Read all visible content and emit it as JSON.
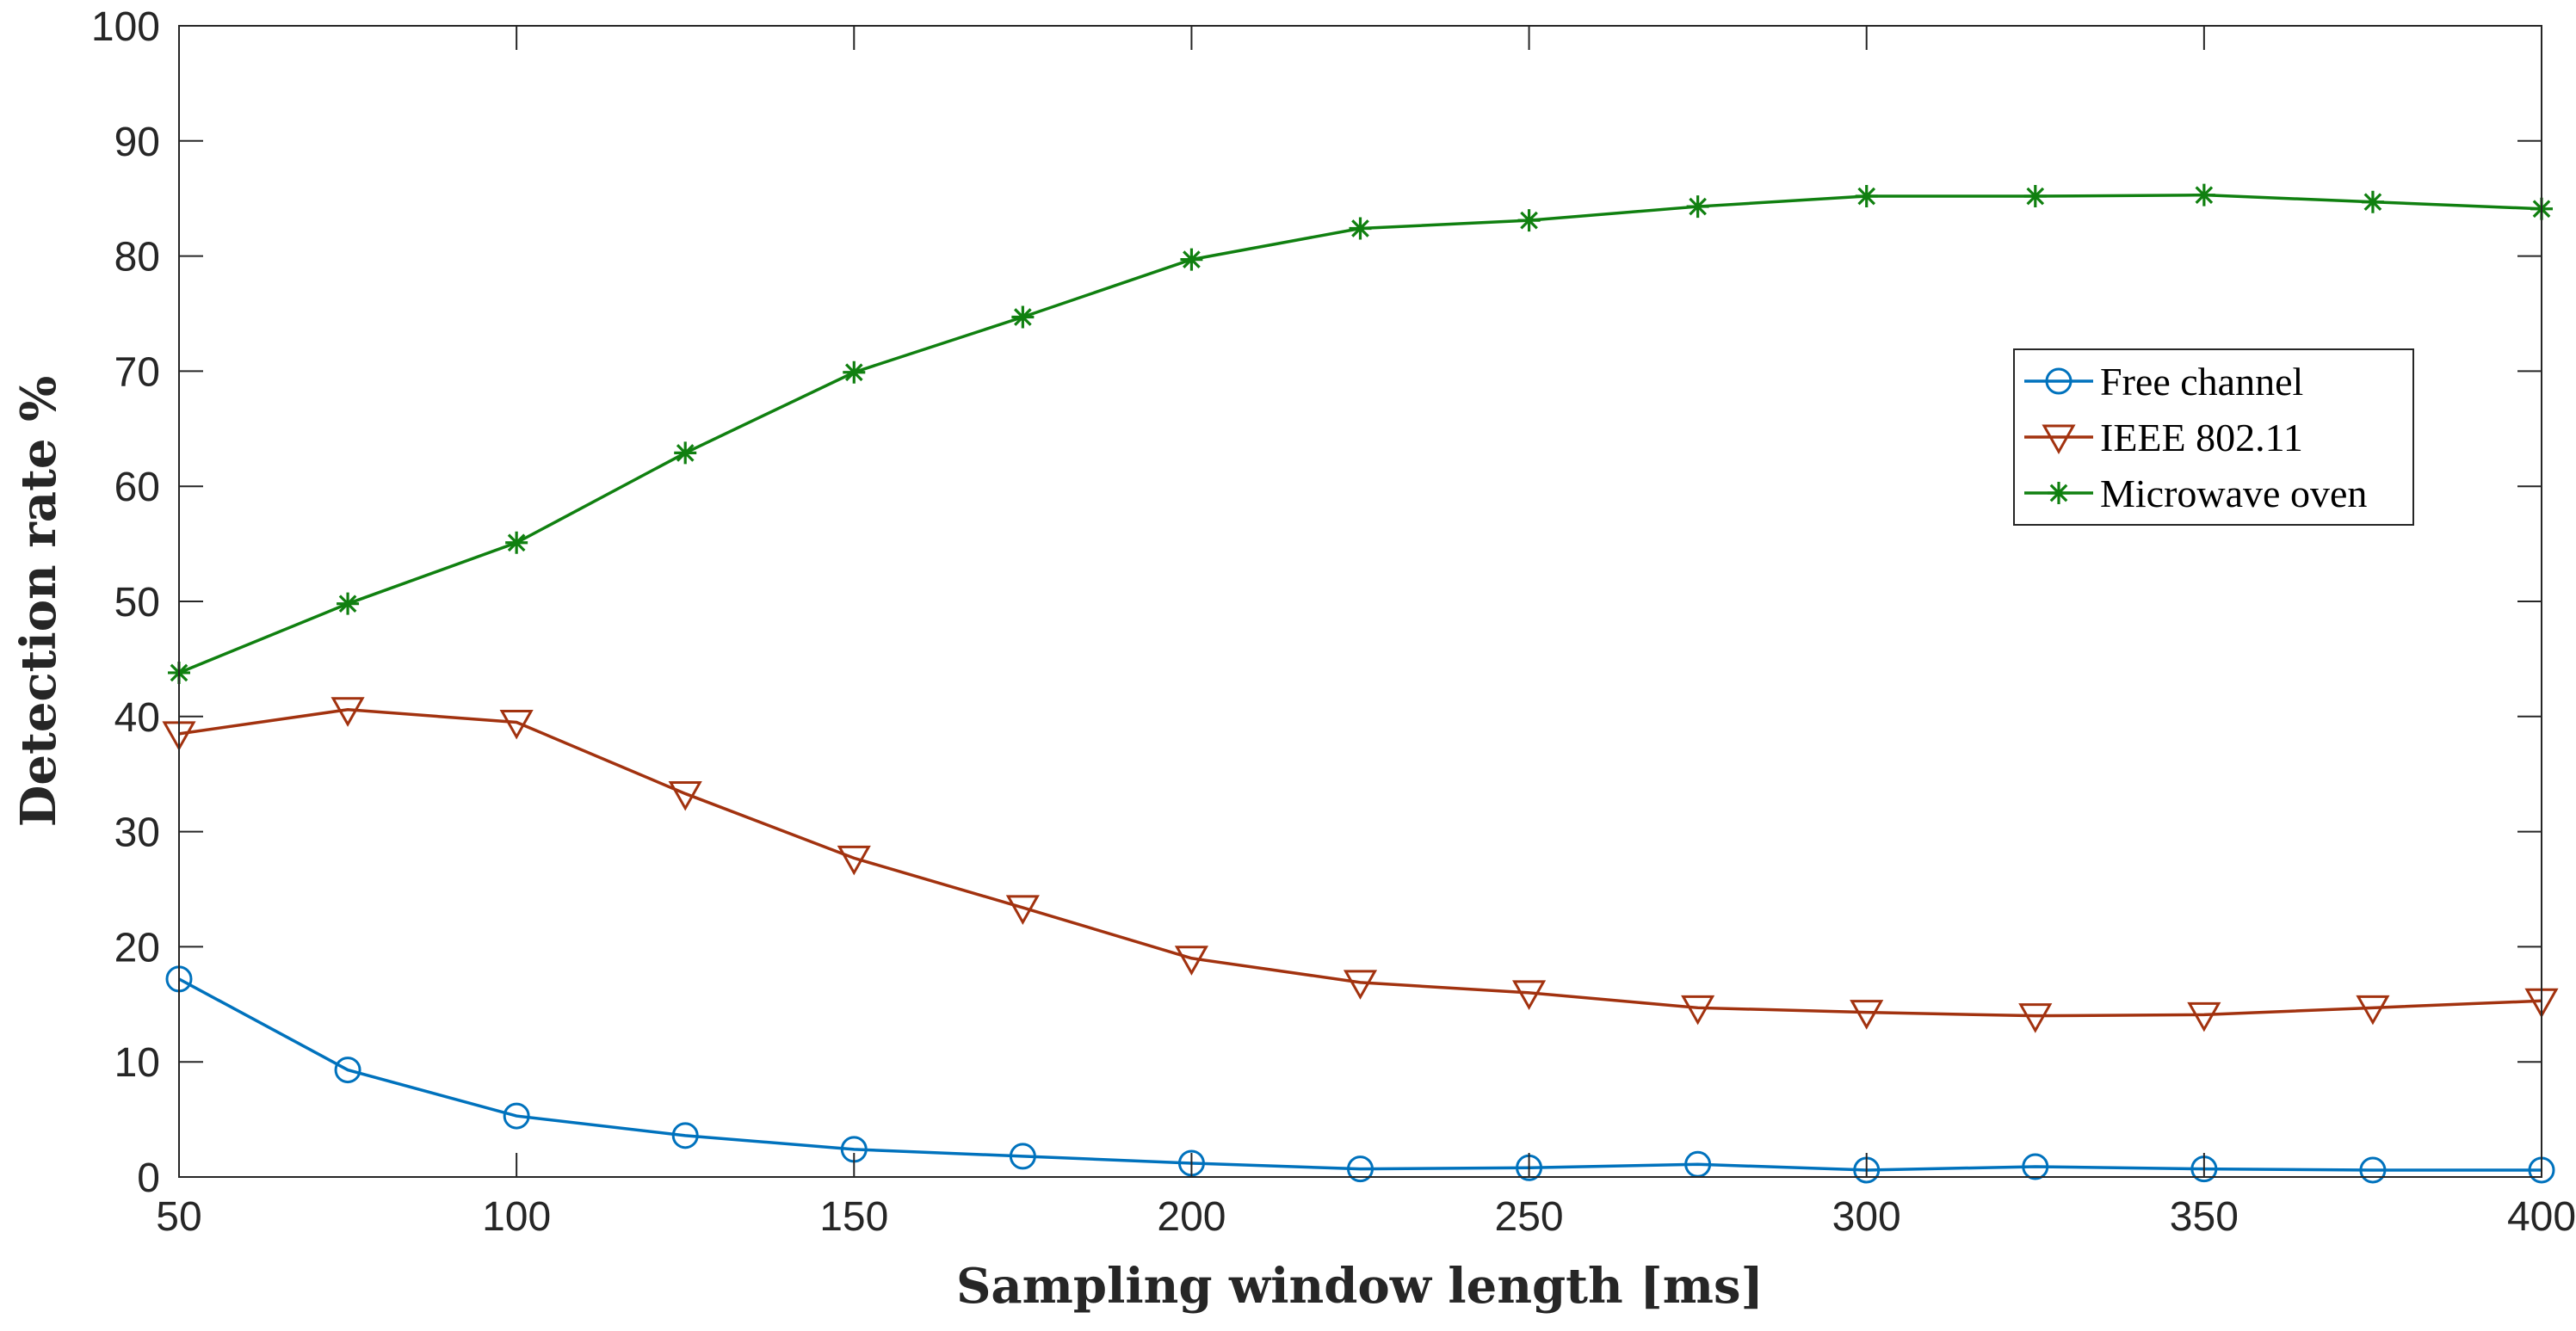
{
  "chart_data": {
    "type": "line",
    "title": "",
    "xlabel": "Sampling window length [ms]",
    "ylabel": "Detection rate %",
    "xlim": [
      50,
      400
    ],
    "ylim": [
      0,
      100
    ],
    "xticks": [
      50,
      100,
      150,
      200,
      250,
      300,
      350,
      400
    ],
    "yticks": [
      0,
      10,
      20,
      30,
      40,
      50,
      60,
      70,
      80,
      90,
      100
    ],
    "grid": false,
    "legend_position": "upper-right-inside",
    "x": [
      50,
      75,
      100,
      125,
      150,
      175,
      200,
      225,
      250,
      275,
      300,
      325,
      350,
      375,
      400
    ],
    "series": [
      {
        "name": "Free channel",
        "color": "#0072bd",
        "marker": "circle",
        "values": [
          17.2,
          9.3,
          5.3,
          3.6,
          2.4,
          1.8,
          1.2,
          0.7,
          0.8,
          1.1,
          0.6,
          0.9,
          0.7,
          0.6,
          0.6
        ]
      },
      {
        "name": "IEEE 802.11",
        "color": "#a2320f",
        "marker": "triangle-down",
        "values": [
          38.5,
          40.6,
          39.5,
          33.3,
          27.7,
          23.4,
          19.0,
          16.9,
          16.0,
          14.7,
          14.3,
          14.0,
          14.1,
          14.7,
          15.3
        ]
      },
      {
        "name": "Microwave oven",
        "color": "#108010",
        "marker": "star",
        "values": [
          43.8,
          49.8,
          55.1,
          62.9,
          69.9,
          74.7,
          79.7,
          82.4,
          83.1,
          84.3,
          85.2,
          85.2,
          85.3,
          84.7,
          84.1
        ]
      }
    ]
  }
}
